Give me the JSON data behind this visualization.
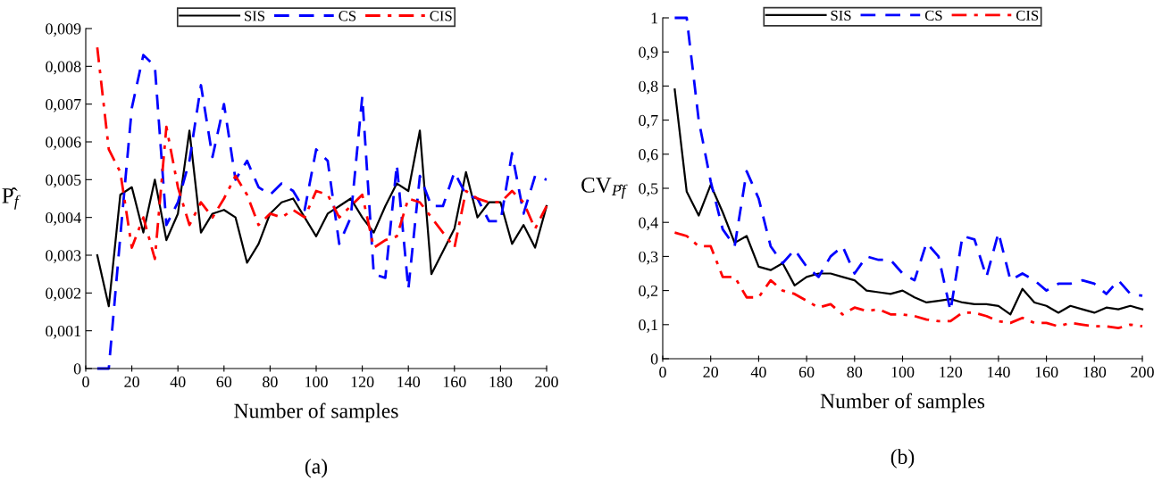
{
  "chart_data": [
    {
      "type": "line",
      "title": "(a)",
      "xlabel": "Number of samples",
      "ylabel": "P̂$_{f}$",
      "legend": "top",
      "grid": false,
      "x": [
        5,
        10,
        15,
        20,
        25,
        30,
        35,
        40,
        45,
        50,
        55,
        60,
        65,
        70,
        75,
        80,
        85,
        90,
        95,
        100,
        105,
        110,
        115,
        120,
        125,
        130,
        135,
        140,
        145,
        150,
        155,
        160,
        165,
        170,
        175,
        180,
        185,
        190,
        195,
        200
      ],
      "xlim": [
        0,
        200
      ],
      "xticks": [
        0,
        20,
        40,
        60,
        80,
        100,
        120,
        140,
        160,
        180,
        200
      ],
      "ylim": [
        0,
        0.009
      ],
      "yticks": [
        0,
        {
          "value": 0.001,
          "label": "0,001"
        },
        {
          "value": 0.002,
          "label": "0,002"
        },
        {
          "value": 0.003,
          "label": "0,003"
        },
        {
          "value": 0.004,
          "label": "0,004"
        },
        {
          "value": 0.005,
          "label": "0,005"
        },
        {
          "value": 0.006,
          "label": "0,006"
        },
        {
          "value": 0.007,
          "label": "0,007"
        },
        {
          "value": 0.008,
          "label": "0,008"
        },
        {
          "value": 0.009,
          "label": "0,009"
        }
      ],
      "series": [
        {
          "name": "SIS",
          "color": "#000000",
          "line_style": "solid",
          "values": [
            0.003,
            0.00165,
            0.0046,
            0.0048,
            0.0036,
            0.005,
            0.0034,
            0.0041,
            0.0063,
            0.0036,
            0.0041,
            0.0042,
            0.004,
            0.0028,
            0.0033,
            0.0041,
            0.0044,
            0.0045,
            0.004,
            0.0035,
            0.0041,
            0.0043,
            0.0045,
            0.004,
            0.0036,
            0.0043,
            0.0049,
            0.0047,
            0.0063,
            0.0025,
            0.0031,
            0.0037,
            0.0052,
            0.004,
            0.0044,
            0.0044,
            0.0033,
            0.0038,
            0.0032,
            0.0043
          ]
        },
        {
          "name": "CS",
          "color": "#0000ff",
          "line_style": "dashed",
          "values": [
            0,
            0,
            0.0035,
            0.0069,
            0.0083,
            0.008,
            0.0038,
            0.0044,
            0.0055,
            0.0075,
            0.0056,
            0.007,
            0.005,
            0.0055,
            0.0048,
            0.0046,
            0.0049,
            0.0047,
            0.0042,
            0.0058,
            0.0055,
            0.0033,
            0.004,
            0.0072,
            0.0025,
            0.0024,
            0.0054,
            0.0021,
            0.0051,
            0.0043,
            0.0043,
            0.0052,
            0.0046,
            0.0045,
            0.0039,
            0.0039,
            0.0057,
            0.0041,
            0.0051,
            0.005
          ]
        },
        {
          "name": "CIS",
          "color": "#ff0000",
          "line_style": "dashdot",
          "values": [
            0.0085,
            0.0058,
            0.0052,
            0.0032,
            0.004,
            0.0029,
            0.0064,
            0.0048,
            0.0038,
            0.0044,
            0.004,
            0.0045,
            0.0051,
            0.0046,
            0.0038,
            0.0041,
            0.004,
            0.0042,
            0.004,
            0.0047,
            0.0046,
            0.004,
            0.0043,
            0.0046,
            0.0032,
            0.0034,
            0.0035,
            0.0045,
            0.0044,
            0.004,
            0.0036,
            0.0032,
            0.0047,
            0.0045,
            0.0044,
            0.0044,
            0.0047,
            0.0044,
            0.0037,
            0.0043
          ]
        }
      ]
    },
    {
      "type": "line",
      "title": "(b)",
      "xlabel": "Number of samples",
      "ylabel": "CV$_{P̂f}$",
      "legend": "top",
      "grid": false,
      "x": [
        5,
        10,
        15,
        20,
        25,
        30,
        35,
        40,
        45,
        50,
        55,
        60,
        65,
        70,
        75,
        80,
        85,
        90,
        95,
        100,
        105,
        110,
        115,
        120,
        125,
        130,
        135,
        140,
        145,
        150,
        155,
        160,
        165,
        170,
        175,
        180,
        185,
        190,
        195,
        200
      ],
      "xlim": [
        0,
        200
      ],
      "xticks": [
        0,
        20,
        40,
        60,
        80,
        100,
        120,
        140,
        160,
        180,
        200
      ],
      "ylim": [
        0,
        1
      ],
      "yticks": [
        0,
        {
          "value": 0.1,
          "label": "0,1"
        },
        {
          "value": 0.2,
          "label": "0,2"
        },
        {
          "value": 0.3,
          "label": "0,3"
        },
        {
          "value": 0.4,
          "label": "0,4"
        },
        {
          "value": 0.5,
          "label": "0,5"
        },
        {
          "value": 0.6,
          "label": "0,6"
        },
        {
          "value": 0.7,
          "label": "0,7"
        },
        {
          "value": 0.8,
          "label": "0,8"
        },
        {
          "value": 0.9,
          "label": "0,9"
        },
        1
      ],
      "series": [
        {
          "name": "SIS",
          "color": "#000000",
          "line_style": "solid",
          "values": [
            0.79,
            0.49,
            0.42,
            0.51,
            0.43,
            0.34,
            0.36,
            0.27,
            0.26,
            0.28,
            0.215,
            0.24,
            0.25,
            0.25,
            0.24,
            0.23,
            0.2,
            0.195,
            0.19,
            0.2,
            0.18,
            0.165,
            0.17,
            0.175,
            0.165,
            0.16,
            0.16,
            0.155,
            0.13,
            0.205,
            0.165,
            0.155,
            0.135,
            0.155,
            0.145,
            0.135,
            0.15,
            0.145,
            0.155,
            0.145
          ]
        },
        {
          "name": "CS",
          "color": "#0000ff",
          "line_style": "dashed",
          "values": [
            1.0,
            1.0,
            0.7,
            0.52,
            0.38,
            0.33,
            0.55,
            0.47,
            0.33,
            0.28,
            0.32,
            0.27,
            0.24,
            0.3,
            0.33,
            0.25,
            0.3,
            0.29,
            0.29,
            0.25,
            0.23,
            0.34,
            0.3,
            0.14,
            0.36,
            0.35,
            0.24,
            0.37,
            0.23,
            0.25,
            0.23,
            0.2,
            0.22,
            0.22,
            0.23,
            0.22,
            0.19,
            0.23,
            0.19,
            0.185
          ]
        },
        {
          "name": "CIS",
          "color": "#ff0000",
          "line_style": "dashdot",
          "values": [
            0.37,
            0.36,
            0.33,
            0.33,
            0.24,
            0.24,
            0.18,
            0.18,
            0.23,
            0.2,
            0.19,
            0.17,
            0.15,
            0.16,
            0.13,
            0.15,
            0.14,
            0.145,
            0.13,
            0.13,
            0.125,
            0.115,
            0.11,
            0.11,
            0.135,
            0.135,
            0.125,
            0.11,
            0.105,
            0.12,
            0.105,
            0.105,
            0.095,
            0.105,
            0.1,
            0.095,
            0.095,
            0.09,
            0.1,
            0.095
          ]
        }
      ]
    }
  ]
}
